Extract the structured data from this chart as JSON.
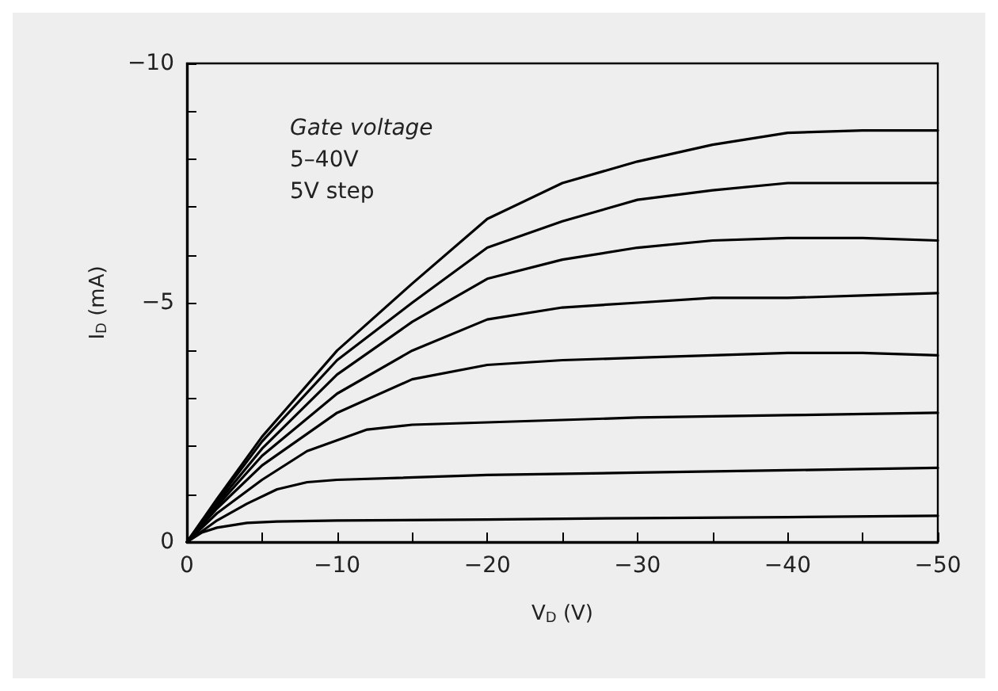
{
  "chart_data": {
    "type": "line",
    "xlabel": "V$_{D}$ (V)",
    "ylabel": "I$_{D}$ (mA)",
    "annotations": [
      "Gate voltage",
      "5–40V",
      "5V step"
    ],
    "xlim": [
      0,
      -50
    ],
    "ylim": [
      0,
      -10
    ],
    "xticks": [
      0,
      {
        "value": -5,
        "label": null
      },
      {
        "value": -10,
        "label": "−10"
      },
      {
        "value": -15,
        "label": null
      },
      {
        "value": -20,
        "label": "−20"
      },
      {
        "value": -25,
        "label": null
      },
      {
        "value": -30,
        "label": "−30"
      },
      {
        "value": -35,
        "label": null
      },
      {
        "value": -40,
        "label": "−40"
      },
      {
        "value": -45,
        "label": null
      },
      {
        "value": -50,
        "label": "−50"
      }
    ],
    "yticks": [
      0,
      {
        "value": -1,
        "label": null
      },
      {
        "value": -2,
        "label": null
      },
      {
        "value": -3,
        "label": null
      },
      {
        "value": -4,
        "label": null
      },
      {
        "value": -5,
        "label": "−5"
      },
      {
        "value": -6,
        "label": null
      },
      {
        "value": -7,
        "label": null
      },
      {
        "value": -8,
        "label": null
      },
      {
        "value": -9,
        "label": null
      },
      {
        "value": -10,
        "label": "−10"
      }
    ],
    "grid": false,
    "marker": "none",
    "line_style": "solid",
    "series": [
      {
        "color": "#000000",
        "x": [
          0,
          -1,
          -2,
          -4,
          -6,
          -10,
          -20,
          -30,
          -40,
          -50
        ],
        "values": [
          0,
          -0.2,
          -0.3,
          -0.4,
          -0.43,
          -0.45,
          -0.47,
          -0.5,
          -0.52,
          -0.55
        ]
      },
      {
        "color": "#000000",
        "x": [
          0,
          -2,
          -4,
          -6,
          -8,
          -10,
          -20,
          -30,
          -40,
          -50
        ],
        "values": [
          0,
          -0.45,
          -0.8,
          -1.1,
          -1.25,
          -1.3,
          -1.4,
          -1.45,
          -1.5,
          -1.55
        ]
      },
      {
        "color": "#000000",
        "x": [
          0,
          -2,
          -5,
          -8,
          -12,
          -15,
          -20,
          -30,
          -40,
          -50
        ],
        "values": [
          0,
          -0.6,
          -1.3,
          -1.9,
          -2.35,
          -2.45,
          -2.5,
          -2.6,
          -2.65,
          -2.7
        ]
      },
      {
        "color": "#000000",
        "x": [
          0,
          -2,
          -5,
          -10,
          -15,
          -20,
          -25,
          -30,
          -35,
          -40,
          -45,
          -50
        ],
        "values": [
          0,
          -0.7,
          -1.6,
          -2.7,
          -3.4,
          -3.7,
          -3.8,
          -3.85,
          -3.9,
          -3.95,
          -3.95,
          -3.9
        ]
      },
      {
        "color": "#000000",
        "x": [
          0,
          -2,
          -5,
          -10,
          -15,
          -20,
          -25,
          -30,
          -35,
          -40,
          -45,
          -50
        ],
        "values": [
          0,
          -0.75,
          -1.8,
          -3.1,
          -4.0,
          -4.65,
          -4.9,
          -5.0,
          -5.1,
          -5.1,
          -5.15,
          -5.2
        ]
      },
      {
        "color": "#000000",
        "x": [
          0,
          -2,
          -5,
          -10,
          -15,
          -20,
          -25,
          -30,
          -35,
          -40,
          -45,
          -50
        ],
        "values": [
          0,
          -0.8,
          -1.95,
          -3.5,
          -4.6,
          -5.5,
          -5.9,
          -6.15,
          -6.3,
          -6.35,
          -6.35,
          -6.3
        ]
      },
      {
        "color": "#000000",
        "x": [
          0,
          -2,
          -5,
          -10,
          -15,
          -20,
          -25,
          -30,
          -35,
          -40,
          -45,
          -50
        ],
        "values": [
          0,
          -0.85,
          -2.1,
          -3.8,
          -5.0,
          -6.15,
          -6.7,
          -7.15,
          -7.35,
          -7.5,
          -7.5,
          -7.5
        ]
      },
      {
        "color": "#000000",
        "x": [
          0,
          -2,
          -5,
          -10,
          -15,
          -20,
          -25,
          -30,
          -35,
          -40,
          -45,
          -50
        ],
        "values": [
          0,
          -0.9,
          -2.2,
          -4.0,
          -5.4,
          -6.75,
          -7.5,
          -7.95,
          -8.3,
          -8.55,
          -8.6,
          -8.6
        ]
      }
    ]
  }
}
